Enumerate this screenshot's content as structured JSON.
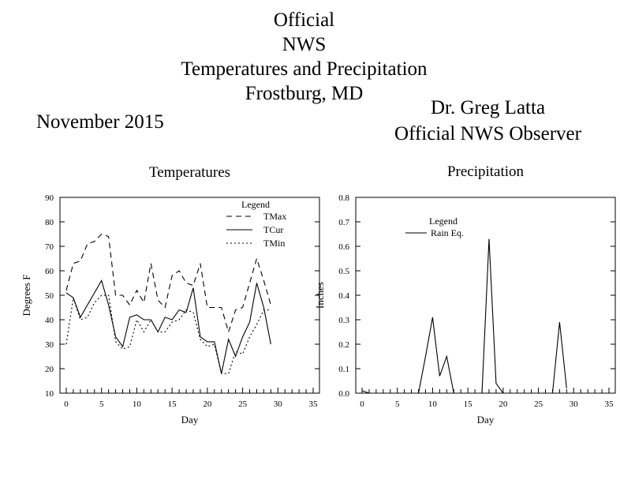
{
  "header": {
    "title_lines": [
      "Official",
      "NWS",
      "Temperatures and Precipitation",
      "Frostburg, MD"
    ],
    "month": "November 2015",
    "observer_name": "Dr. Greg Latta",
    "observer_title": "Official NWS Observer"
  },
  "chart_data": [
    {
      "type": "line",
      "title": "Temperatures",
      "xlabel": "Day",
      "ylabel": "Degrees F",
      "xlim": [
        0,
        35
      ],
      "ylim": [
        10,
        90
      ],
      "x_ticks": [
        "0",
        "5",
        "10",
        "15",
        "20",
        "25",
        "30",
        "35"
      ],
      "y_ticks": [
        "10",
        "20",
        "30",
        "40",
        "50",
        "60",
        "70",
        "80",
        "90"
      ],
      "legend_title": "Legend",
      "legend_position": "top-right",
      "x": [
        0,
        1,
        2,
        3,
        4,
        5,
        6,
        7,
        8,
        9,
        10,
        11,
        12,
        13,
        14,
        15,
        16,
        17,
        18,
        19,
        20,
        21,
        22,
        23,
        24,
        25,
        26,
        27,
        28,
        29
      ],
      "series": [
        {
          "name": "TMax",
          "style": "dashed",
          "values": [
            52,
            63,
            64,
            71,
            72,
            75,
            74,
            50,
            50,
            46,
            52,
            47,
            63,
            48,
            45,
            58,
            60,
            55,
            54,
            63,
            45,
            45,
            45,
            35,
            44,
            45,
            55,
            65,
            56,
            46
          ]
        },
        {
          "name": "TCur",
          "style": "solid",
          "values": [
            51,
            49,
            41,
            46,
            51,
            56,
            46,
            33,
            29,
            41,
            42,
            40,
            40,
            35,
            41,
            40,
            44,
            43,
            53,
            33,
            31,
            31,
            18,
            32,
            25,
            33,
            39,
            55,
            45,
            30
          ]
        },
        {
          "name": "TMin",
          "style": "dotted",
          "values": [
            30,
            49,
            40,
            41,
            47,
            50,
            50,
            31,
            28,
            29,
            40,
            35,
            40,
            35,
            35,
            39,
            40,
            44,
            43,
            32,
            29,
            30,
            18,
            18,
            27,
            26,
            33,
            38,
            44,
            44
          ]
        }
      ]
    },
    {
      "type": "line",
      "title": "Precipitation",
      "xlabel": "Day",
      "ylabel": "Inches",
      "xlim": [
        0,
        35
      ],
      "ylim": [
        0.0,
        0.8
      ],
      "x_ticks": [
        "0",
        "5",
        "10",
        "15",
        "20",
        "25",
        "30",
        "35"
      ],
      "y_ticks": [
        "0.0",
        "0.1",
        "0.2",
        "0.3",
        "0.4",
        "0.5",
        "0.6",
        "0.7",
        "0.8"
      ],
      "legend_title": "Legend",
      "legend_position": "top-left",
      "x": [
        0,
        1,
        2,
        3,
        4,
        5,
        6,
        7,
        8,
        9,
        10,
        11,
        12,
        13,
        14,
        15,
        16,
        17,
        18,
        19,
        20,
        21,
        22,
        23,
        24,
        25,
        26,
        27,
        28,
        29
      ],
      "series": [
        {
          "name": "Rain Eq.",
          "style": "solid",
          "values": [
            0.01,
            0,
            0,
            0,
            0,
            0,
            0,
            0,
            0,
            0.15,
            0.31,
            0.07,
            0.15,
            0,
            0,
            0,
            0,
            0,
            0.63,
            0.04,
            0,
            0,
            0,
            0,
            0,
            0,
            0,
            0,
            0.29,
            0.02
          ]
        }
      ]
    }
  ]
}
